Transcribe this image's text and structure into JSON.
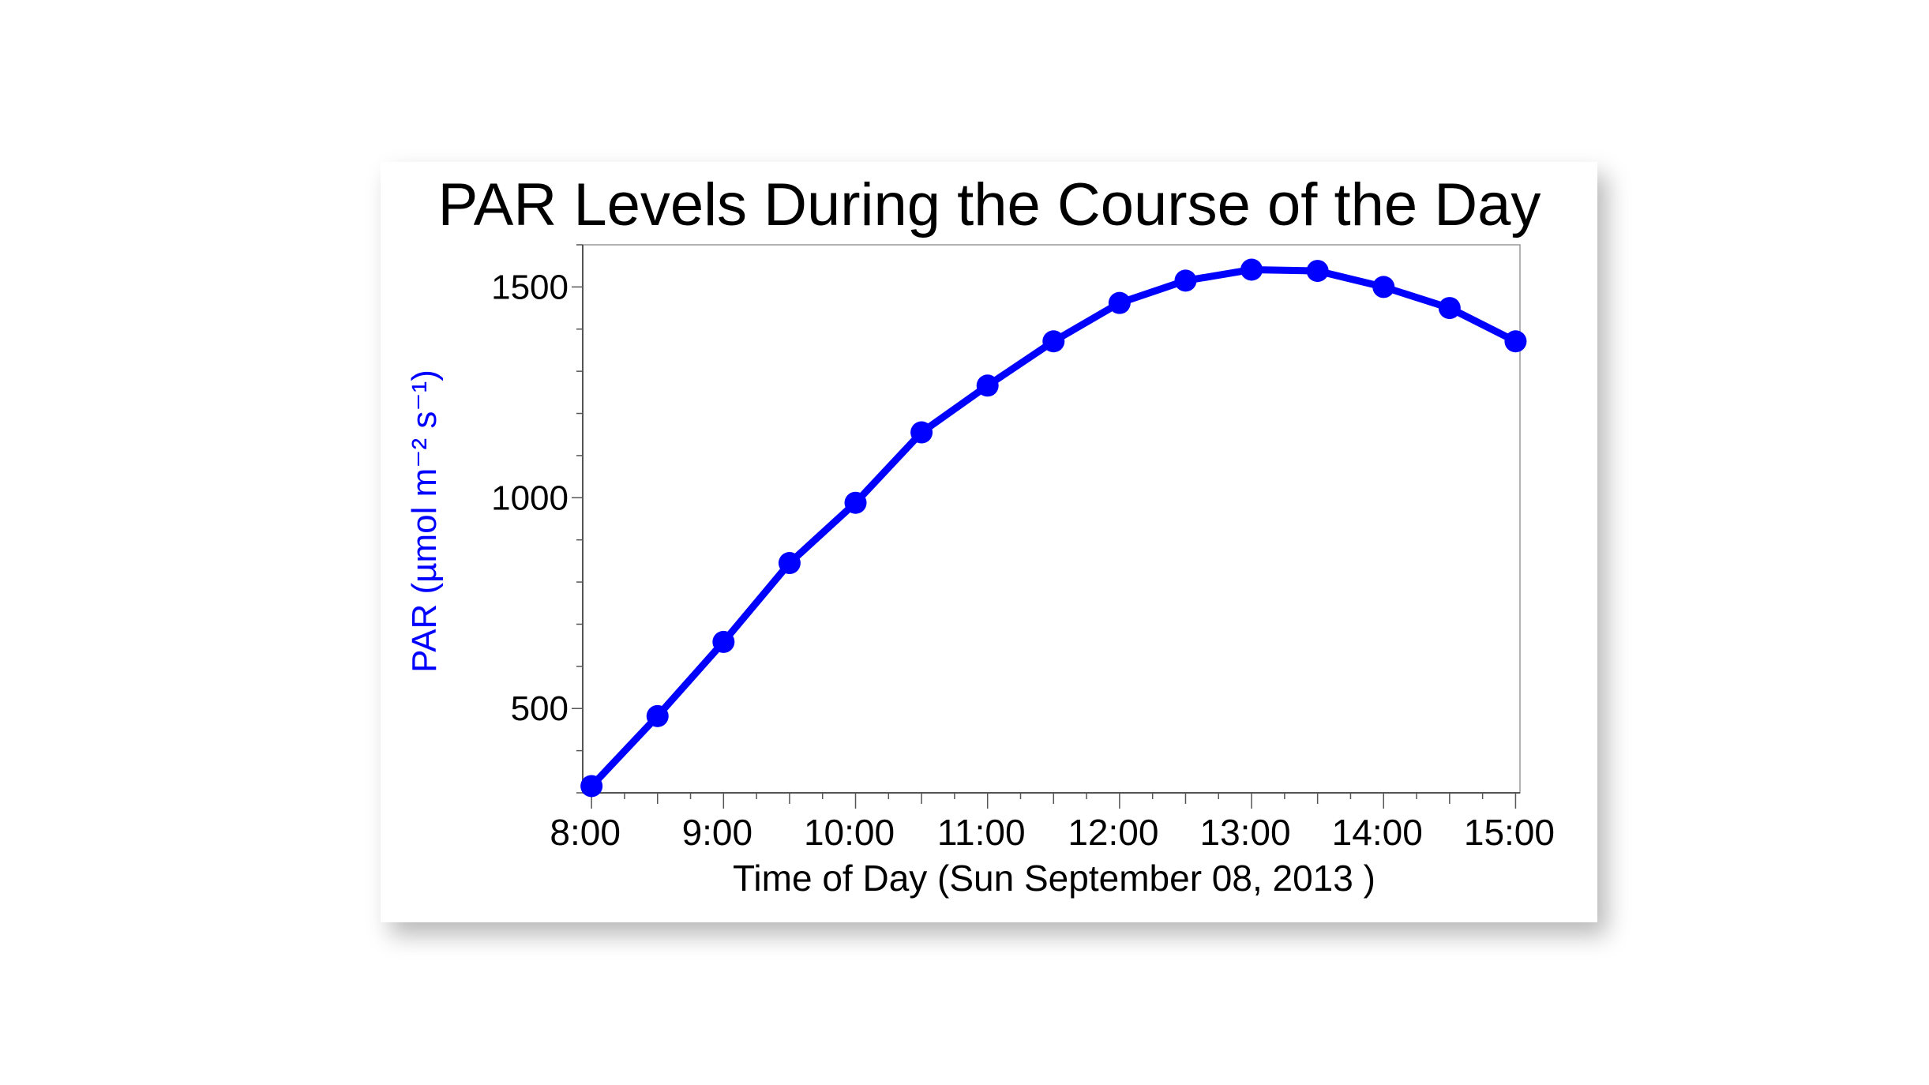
{
  "chart_data": {
    "type": "line",
    "title": "PAR Levels During the Course of the Day",
    "xlabel": "Time of Day  (Sun  September 08, 2013 )",
    "ylabel": "PAR (µmol m⁻² s⁻¹)",
    "x_ticks": [
      "8:00",
      "9:00",
      "10:00",
      "11:00",
      "12:00",
      "13:00",
      "14:00",
      "15:00"
    ],
    "y_ticks": [
      500,
      1000,
      1500
    ],
    "xlim": [
      "7:56",
      "15:02"
    ],
    "ylim": [
      300,
      1600
    ],
    "grid": false,
    "series_color": "#0000ff",
    "x": [
      "8:00",
      "8:30",
      "9:00",
      "9:30",
      "10:00",
      "10:30",
      "11:00",
      "11:30",
      "12:00",
      "12:30",
      "13:00",
      "13:30",
      "14:00",
      "14:30",
      "15:00"
    ],
    "values": [
      316,
      482,
      658,
      845,
      988,
      1155,
      1266,
      1371,
      1462,
      1515,
      1541,
      1538,
      1500,
      1450,
      1371
    ]
  }
}
